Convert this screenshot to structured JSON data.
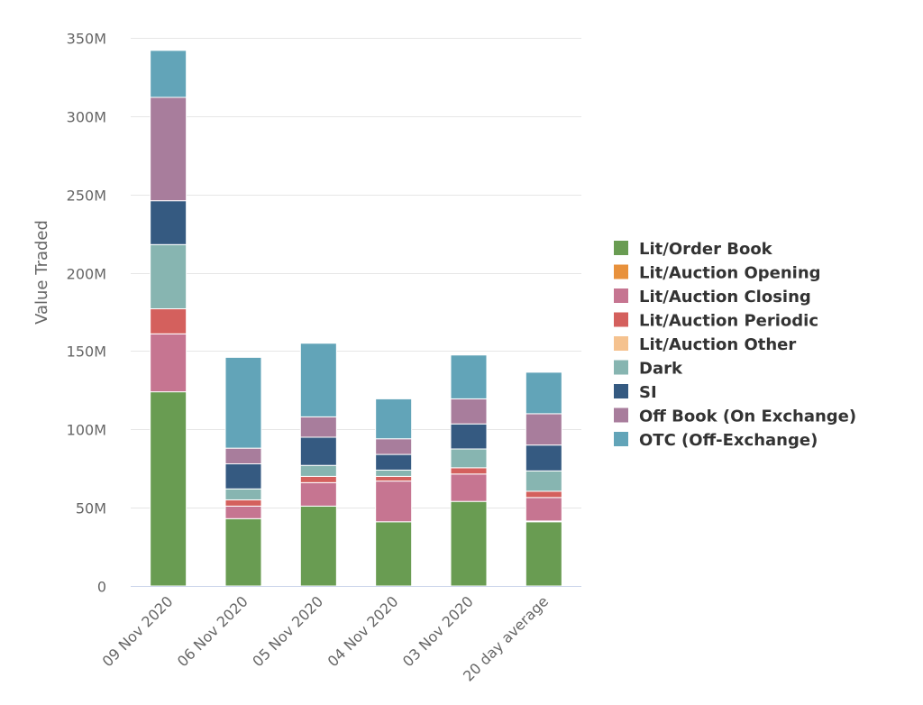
{
  "chart_data": {
    "type": "bar",
    "stacked": true,
    "title": "",
    "xlabel": "",
    "ylabel": "Value Traded",
    "ylim": [
      0,
      350
    ],
    "yunit": "M",
    "yticks": [
      "0",
      "50M",
      "100M",
      "150M",
      "200M",
      "250M",
      "300M",
      "350M"
    ],
    "grid": true,
    "legend_position": "right",
    "categories": [
      "09 Nov 2020",
      "06 Nov 2020",
      "05 Nov 2020",
      "04 Nov 2020",
      "03 Nov 2020",
      "20 day average"
    ],
    "series": [
      {
        "name": "Lit/Order Book",
        "color": "#699c52",
        "values": [
          124,
          43,
          51,
          41,
          54,
          41
        ]
      },
      {
        "name": "Lit/Auction Opening",
        "color": "#e8913c",
        "values": [
          0,
          0,
          0,
          0,
          0,
          0.5
        ]
      },
      {
        "name": "Lit/Auction Closing",
        "color": "#c67591",
        "values": [
          37,
          8,
          15,
          26,
          17.5,
          15
        ]
      },
      {
        "name": "Lit/Auction Periodic",
        "color": "#d4605d",
        "values": [
          16,
          4,
          4,
          3,
          4,
          4
        ]
      },
      {
        "name": "Lit/Auction Other",
        "color": "#f5c28f",
        "values": [
          0,
          0,
          0,
          0,
          0,
          0
        ]
      },
      {
        "name": "Dark",
        "color": "#87b5b1",
        "values": [
          41,
          7,
          7,
          4,
          12,
          13
        ]
      },
      {
        "name": "SI",
        "color": "#355a81",
        "values": [
          28,
          16,
          18,
          10,
          16,
          16.5
        ]
      },
      {
        "name": "Off Book (On Exchange)",
        "color": "#a87d9c",
        "values": [
          66,
          10,
          13,
          10,
          16,
          20
        ]
      },
      {
        "name": "OTC (Off-Exchange)",
        "color": "#62a4b8",
        "values": [
          30,
          58,
          47,
          25.5,
          28,
          26.5
        ]
      }
    ]
  }
}
